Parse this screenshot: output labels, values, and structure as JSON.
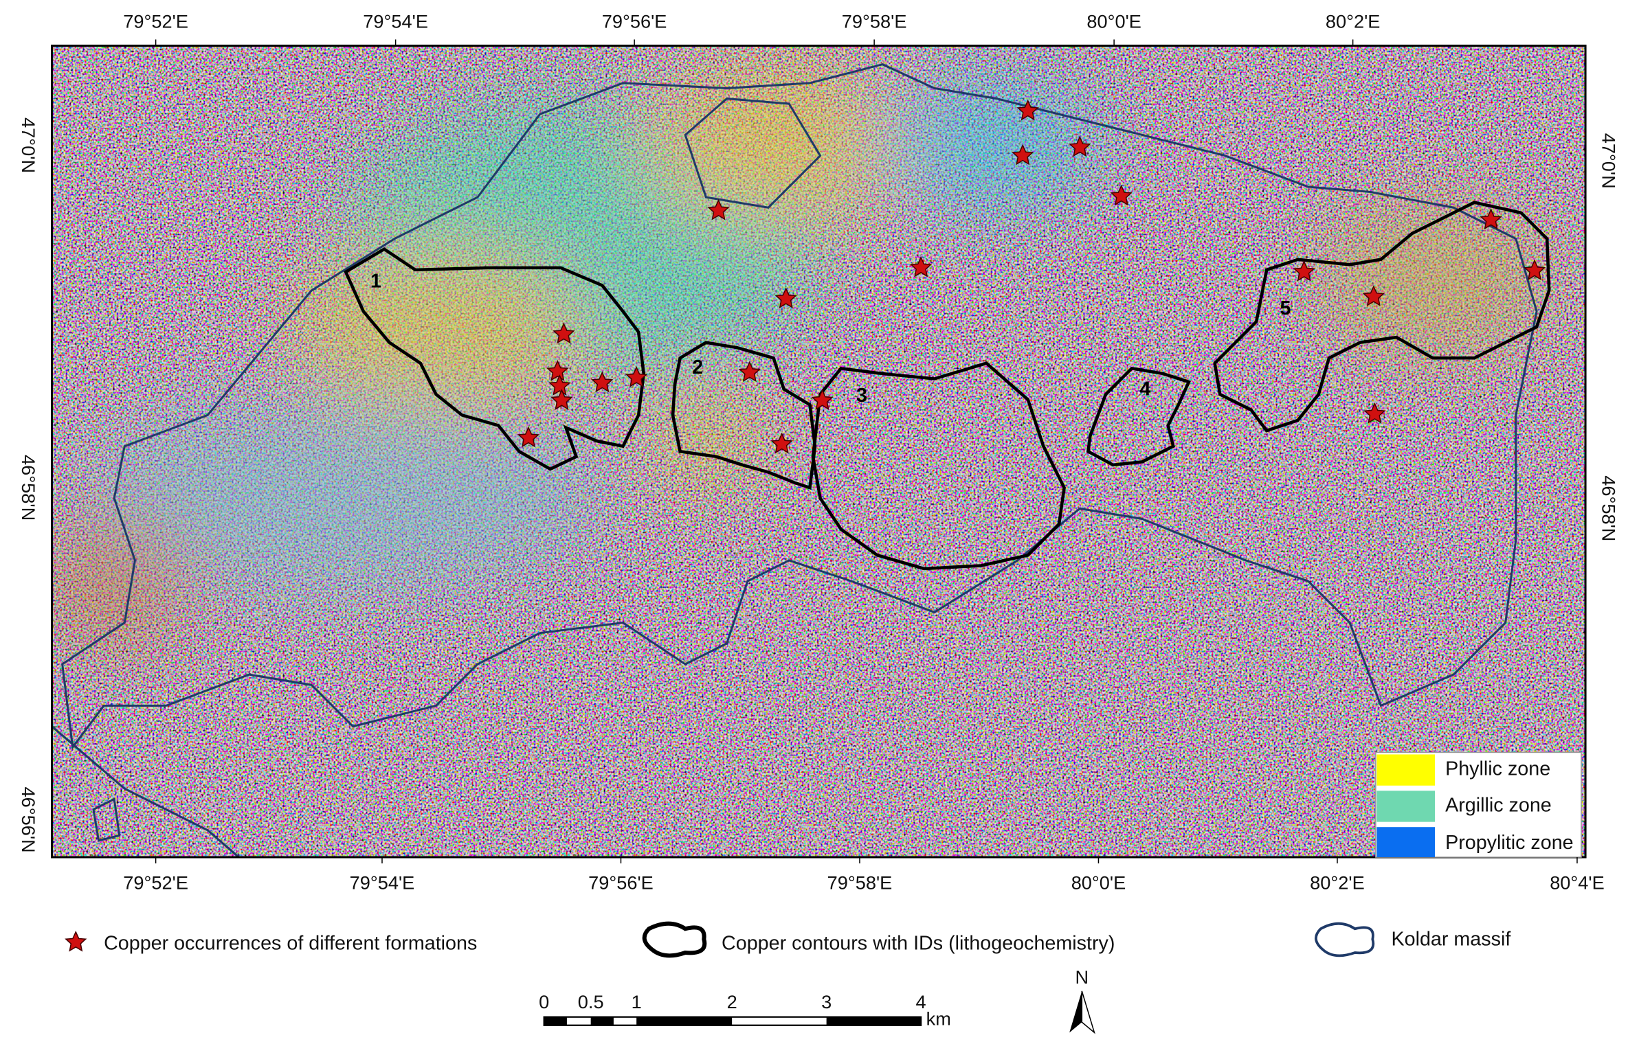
{
  "axes": {
    "top": [
      "79°52'E",
      "79°54'E",
      "79°56'E",
      "79°58'E",
      "80°0'E",
      "80°2'E"
    ],
    "bottom": [
      "79°52'E",
      "79°54'E",
      "79°56'E",
      "79°58'E",
      "80°0'E",
      "80°2'E",
      "80°4'E"
    ],
    "left": [
      "47°0'N",
      "46°58'N",
      "46°56'N"
    ],
    "right": [
      "47°0'N",
      "46°58'N"
    ]
  },
  "zone_legend": [
    "Phyllic zone",
    "Argillic zone",
    "Propylitic zone"
  ],
  "contour_ids": [
    "1",
    "2",
    "3",
    "4",
    "5"
  ],
  "legend": [
    "Copper occurrences of different formations",
    "Copper contours with IDs (lithogeochemistry)",
    "Koldar massif"
  ],
  "scale_bar": {
    "labels": [
      "0",
      "0.5",
      "1",
      "2",
      "3",
      "4"
    ],
    "unit": "km"
  },
  "north": "N"
}
